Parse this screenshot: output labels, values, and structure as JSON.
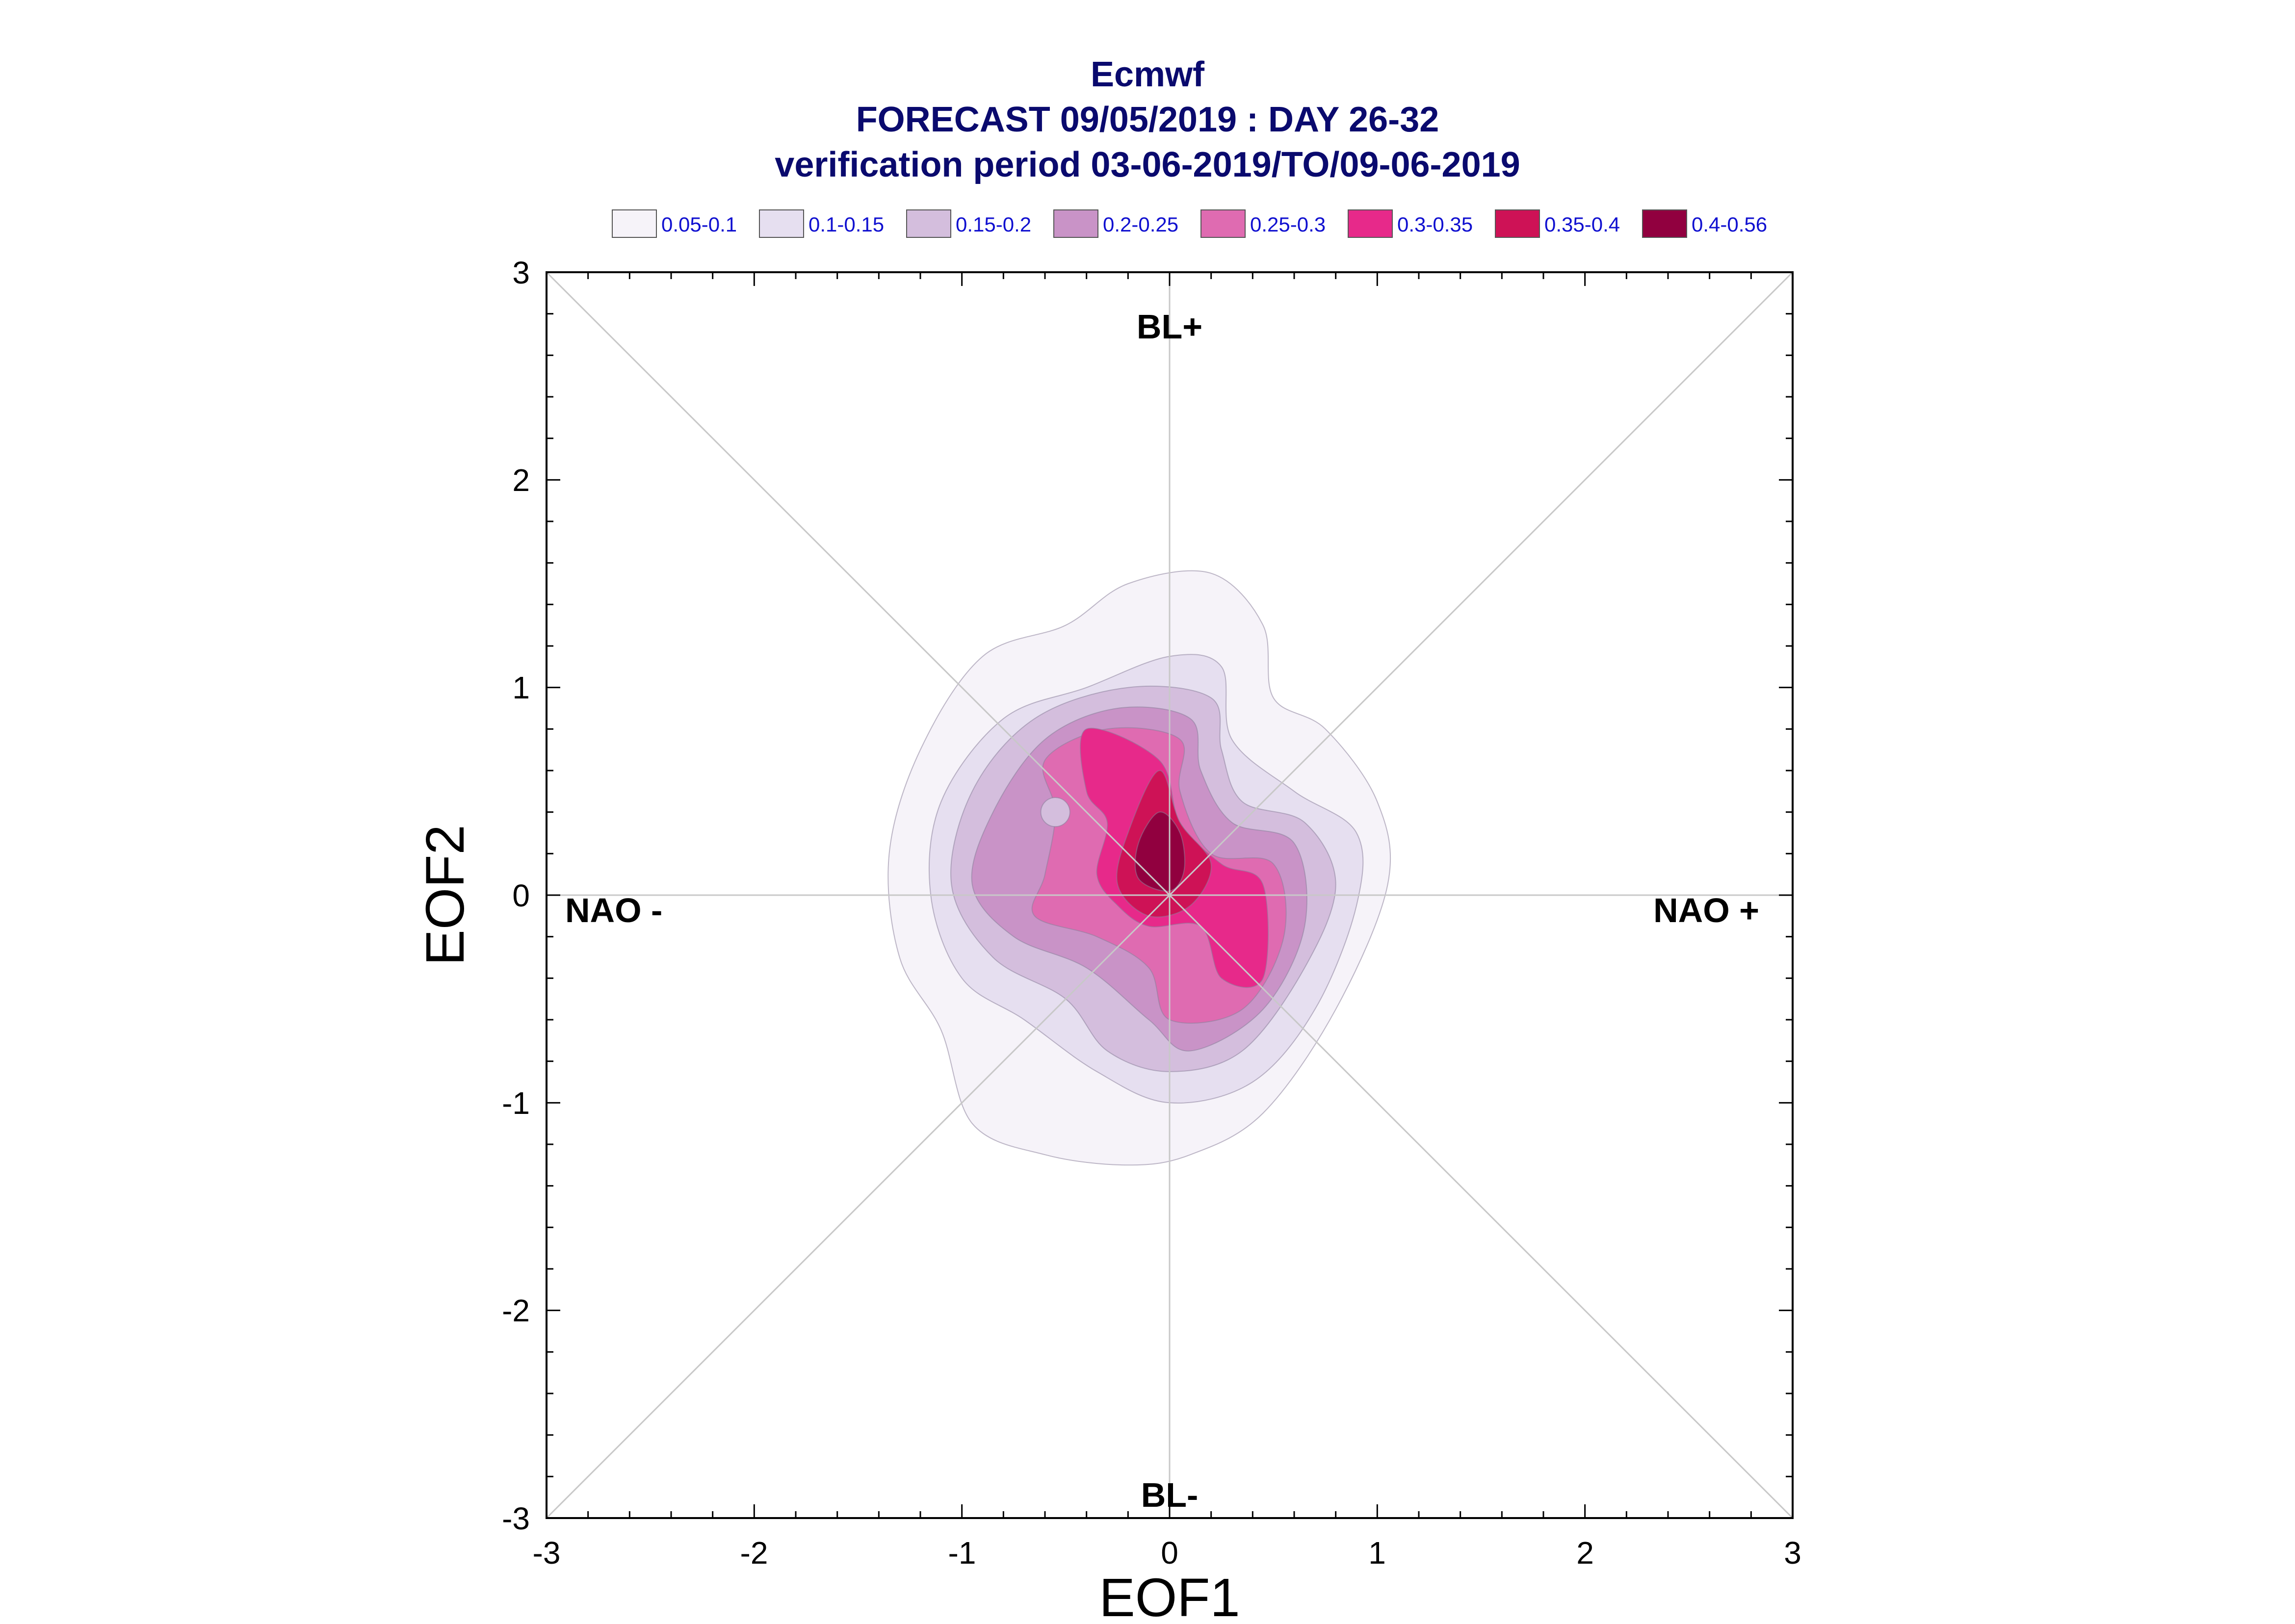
{
  "chart_data": {
    "type": "contour",
    "title_lines": [
      "Ecmwf",
      "FORECAST 09/05/2019 : DAY 26-32",
      "verification period 03-06-2019/TO/09-06-2019"
    ],
    "xlabel": "EOF1",
    "ylabel": "EOF2",
    "xlim": [
      -3,
      3
    ],
    "ylim": [
      -3,
      3
    ],
    "xticks": [
      "-3",
      "-2",
      "-1",
      "0",
      "1",
      "2",
      "3"
    ],
    "yticks": [
      "3",
      "2",
      "1",
      "0",
      "-1",
      "-2",
      "-3"
    ],
    "grid": "cross and diagonals",
    "regime_labels": {
      "top": "BL+",
      "bottom": "BL-",
      "left": "NAO -",
      "right": "NAO +"
    },
    "legend_position": "top",
    "levels": [
      {
        "label": "0.05-0.1",
        "color": "#f6f3f9"
      },
      {
        "label": "0.1-0.15",
        "color": "#e6dff0"
      },
      {
        "label": "0.15-0.2",
        "color": "#d4bedd"
      },
      {
        "label": "0.2-0.25",
        "color": "#c993c7"
      },
      {
        "label": "0.25-0.3",
        "color": "#df6bb1"
      },
      {
        "label": "0.3-0.35",
        "color": "#e7298a"
      },
      {
        "label": "0.35-0.4",
        "color": "#ce1256"
      },
      {
        "label": "0.4-0.56",
        "color": "#91003f"
      }
    ],
    "density_regions": [
      {
        "level": 0,
        "points": [
          [
            0.45,
            1.3
          ],
          [
            0.2,
            1.55
          ],
          [
            -0.2,
            1.5
          ],
          [
            -0.5,
            1.3
          ],
          [
            -0.9,
            1.15
          ],
          [
            -1.2,
            0.7
          ],
          [
            -1.35,
            0.2
          ],
          [
            -1.3,
            -0.3
          ],
          [
            -1.1,
            -0.65
          ],
          [
            -0.95,
            -1.1
          ],
          [
            -0.6,
            -1.25
          ],
          [
            -0.2,
            -1.3
          ],
          [
            0.1,
            -1.25
          ],
          [
            0.45,
            -1.05
          ],
          [
            0.8,
            -0.55
          ],
          [
            1.05,
            0.05
          ],
          [
            1.0,
            0.45
          ],
          [
            0.75,
            0.8
          ],
          [
            0.5,
            0.95
          ]
        ]
      },
      {
        "level": 1,
        "points": [
          [
            0.25,
            1.1
          ],
          [
            0.0,
            1.15
          ],
          [
            -0.4,
            1.0
          ],
          [
            -0.8,
            0.85
          ],
          [
            -1.1,
            0.45
          ],
          [
            -1.15,
            0.0
          ],
          [
            -1.0,
            -0.4
          ],
          [
            -0.7,
            -0.6
          ],
          [
            -0.35,
            -0.85
          ],
          [
            0.0,
            -1.0
          ],
          [
            0.4,
            -0.9
          ],
          [
            0.7,
            -0.55
          ],
          [
            0.9,
            -0.05
          ],
          [
            0.9,
            0.3
          ],
          [
            0.6,
            0.5
          ],
          [
            0.3,
            0.75
          ]
        ]
      },
      {
        "level": 2,
        "points": [
          [
            0.2,
            0.95
          ],
          [
            -0.2,
            1.0
          ],
          [
            -0.65,
            0.85
          ],
          [
            -0.95,
            0.5
          ],
          [
            -1.05,
            0.05
          ],
          [
            -0.85,
            -0.3
          ],
          [
            -0.5,
            -0.5
          ],
          [
            -0.3,
            -0.75
          ],
          [
            0.0,
            -0.85
          ],
          [
            0.35,
            -0.75
          ],
          [
            0.65,
            -0.35
          ],
          [
            0.8,
            0.05
          ],
          [
            0.65,
            0.35
          ],
          [
            0.35,
            0.45
          ],
          [
            0.25,
            0.7
          ]
        ]
      },
      {
        "level": 3,
        "points": [
          [
            0.1,
            0.85
          ],
          [
            -0.25,
            0.9
          ],
          [
            -0.6,
            0.75
          ],
          [
            -0.85,
            0.4
          ],
          [
            -0.95,
            0.05
          ],
          [
            -0.75,
            -0.2
          ],
          [
            -0.4,
            -0.35
          ],
          [
            -0.1,
            -0.6
          ],
          [
            0.1,
            -0.75
          ],
          [
            0.45,
            -0.55
          ],
          [
            0.65,
            -0.15
          ],
          [
            0.6,
            0.25
          ],
          [
            0.3,
            0.35
          ],
          [
            0.15,
            0.6
          ]
        ]
      },
      {
        "level": 4,
        "points": [
          [
            0.05,
            0.75
          ],
          [
            -0.3,
            0.8
          ],
          [
            -0.6,
            0.65
          ],
          [
            -0.55,
            0.4
          ],
          [
            -0.6,
            0.1
          ],
          [
            -0.65,
            -0.1
          ],
          [
            -0.35,
            -0.2
          ],
          [
            -0.1,
            -0.35
          ],
          [
            0.0,
            -0.6
          ],
          [
            0.35,
            -0.55
          ],
          [
            0.55,
            -0.2
          ],
          [
            0.5,
            0.15
          ],
          [
            0.2,
            0.2
          ],
          [
            0.05,
            0.5
          ]
        ]
      },
      {
        "level": 5,
        "points": [
          [
            -0.05,
            0.65
          ],
          [
            -0.4,
            0.8
          ],
          [
            -0.4,
            0.5
          ],
          [
            -0.3,
            0.35
          ],
          [
            -0.35,
            0.1
          ],
          [
            -0.25,
            -0.05
          ],
          [
            -0.1,
            -0.15
          ],
          [
            0.15,
            -0.15
          ],
          [
            0.25,
            -0.4
          ],
          [
            0.45,
            -0.4
          ],
          [
            0.45,
            0.05
          ],
          [
            0.25,
            0.15
          ],
          [
            0.05,
            0.35
          ]
        ]
      },
      {
        "level": 6,
        "points": [
          [
            -0.05,
            0.6
          ],
          [
            -0.2,
            0.3
          ],
          [
            -0.25,
            0.05
          ],
          [
            -0.1,
            -0.1
          ],
          [
            0.1,
            -0.05
          ],
          [
            0.2,
            0.15
          ],
          [
            0.05,
            0.35
          ]
        ]
      },
      {
        "level": 7,
        "points": [
          [
            -0.05,
            0.4
          ],
          [
            -0.15,
            0.25
          ],
          [
            -0.15,
            0.08
          ],
          [
            0.0,
            0.02
          ],
          [
            0.07,
            0.12
          ],
          [
            0.05,
            0.3
          ]
        ]
      }
    ],
    "density_holes": [
      {
        "level": 2,
        "center": [
          -0.55,
          0.4
        ],
        "radius": 0.07
      }
    ]
  }
}
